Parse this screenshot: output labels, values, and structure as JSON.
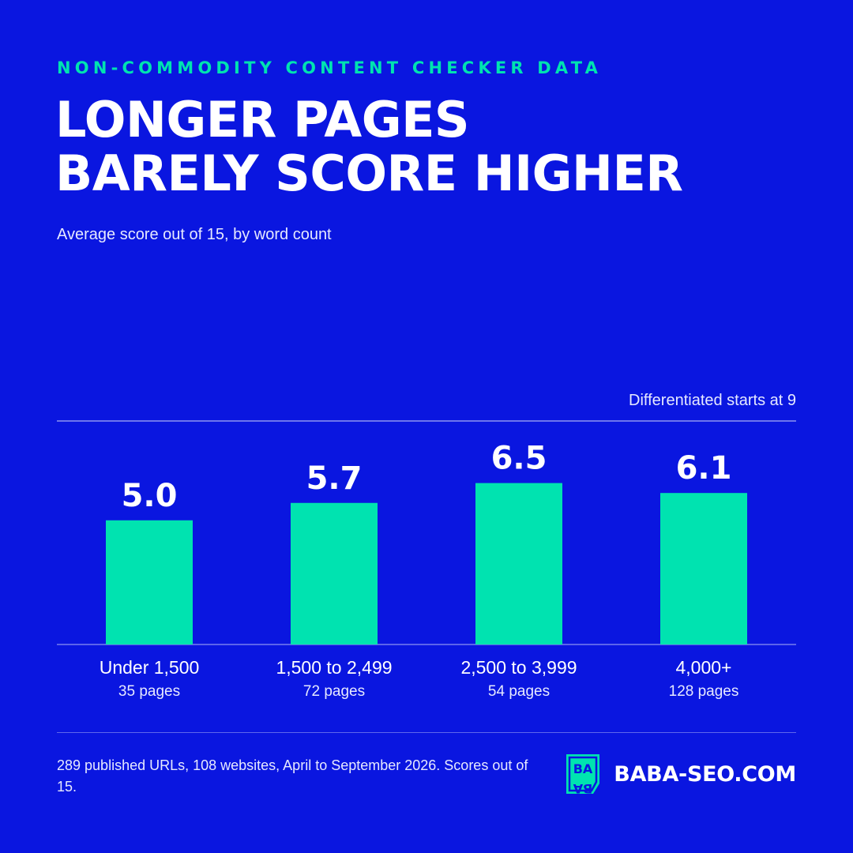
{
  "header": {
    "eyebrow": "NON-COMMODITY CONTENT CHECKER DATA",
    "title_line1": "LONGER PAGES",
    "title_line2": "BARELY SCORE HIGHER",
    "subtitle": "Average score out of 15, by word count"
  },
  "colors": {
    "background": "#0A16E0",
    "accent": "#00E3B0",
    "text": "#FFFFFF"
  },
  "chart_data": {
    "type": "bar",
    "title": "LONGER PAGES BARELY SCORE HIGHER",
    "subtitle": "Average score out of 15, by word count",
    "categories": [
      "Under 1,500",
      "1,500 to 2,499",
      "2,500 to 3,999",
      "4,000+"
    ],
    "values": [
      5.0,
      5.7,
      6.5,
      6.1
    ],
    "value_labels": [
      "5.0",
      "5.7",
      "6.5",
      "6.1"
    ],
    "counts": [
      "35 pages",
      "72 pages",
      "54 pages",
      "128 pages"
    ],
    "reference_line": {
      "value": 9,
      "label": "Differentiated starts at 9"
    },
    "ylim": [
      0,
      9
    ],
    "grid": false,
    "legend": "none"
  },
  "footer": {
    "note": "289 published URLs, 108 websites, April to September 2026. Scores out of 15.",
    "brand": "BABA-SEO.COM",
    "logo_text": "BABA"
  }
}
